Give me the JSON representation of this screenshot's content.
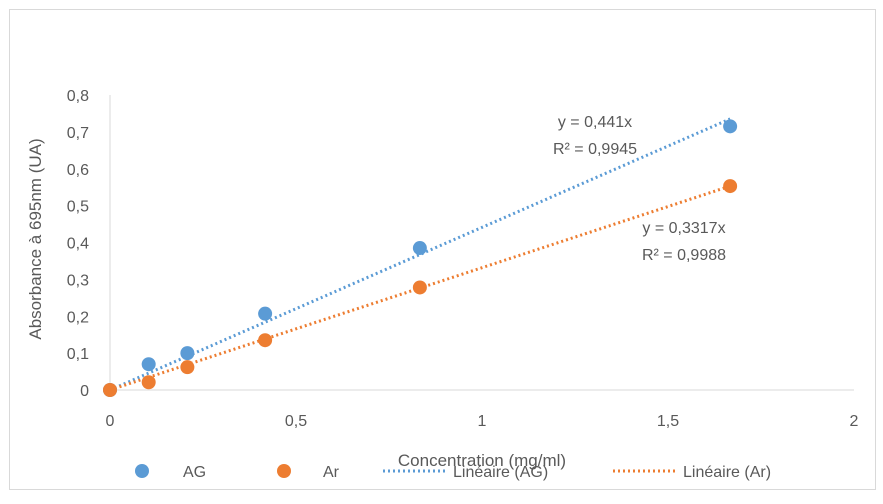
{
  "chart_data": {
    "type": "scatter",
    "title": "",
    "xlabel": "Concentration (mg/ml)",
    "ylabel": "Absorbance à 695nm (UA)",
    "xlim": [
      0,
      2
    ],
    "ylim": [
      0,
      0.8
    ],
    "x_ticks": [
      "0",
      "0,5",
      "1",
      "1,5",
      "2"
    ],
    "y_ticks": [
      "0",
      "0,1",
      "0,2",
      "0,3",
      "0,4",
      "0,5",
      "0,6",
      "0,7",
      "0,8"
    ],
    "grid": false,
    "legend_position": "bottom",
    "series": [
      {
        "name": "AG",
        "color": "#5b9bd5",
        "x": [
          0,
          0.104,
          0.208,
          0.417,
          0.833,
          1.667
        ],
        "y": [
          0,
          0.07,
          0.1,
          0.207,
          0.385,
          0.715
        ]
      },
      {
        "name": "Ar",
        "color": "#ed7d31",
        "x": [
          0,
          0.104,
          0.208,
          0.417,
          0.833,
          1.667
        ],
        "y": [
          0,
          0.021,
          0.062,
          0.135,
          0.278,
          0.553
        ]
      }
    ],
    "trendlines": [
      {
        "name": "Linéaire (AG)",
        "color": "#5b9bd5",
        "slope": 0.441,
        "x_range": [
          0,
          1.667
        ],
        "equation": "y = 0,441x",
        "r2": "R² = 0,9945"
      },
      {
        "name": "Linéaire (Ar)",
        "color": "#ed7d31",
        "slope": 0.3317,
        "x_range": [
          0,
          1.667
        ],
        "equation": "y = 0,3317x",
        "r2": "R² = 0,9988"
      }
    ]
  }
}
